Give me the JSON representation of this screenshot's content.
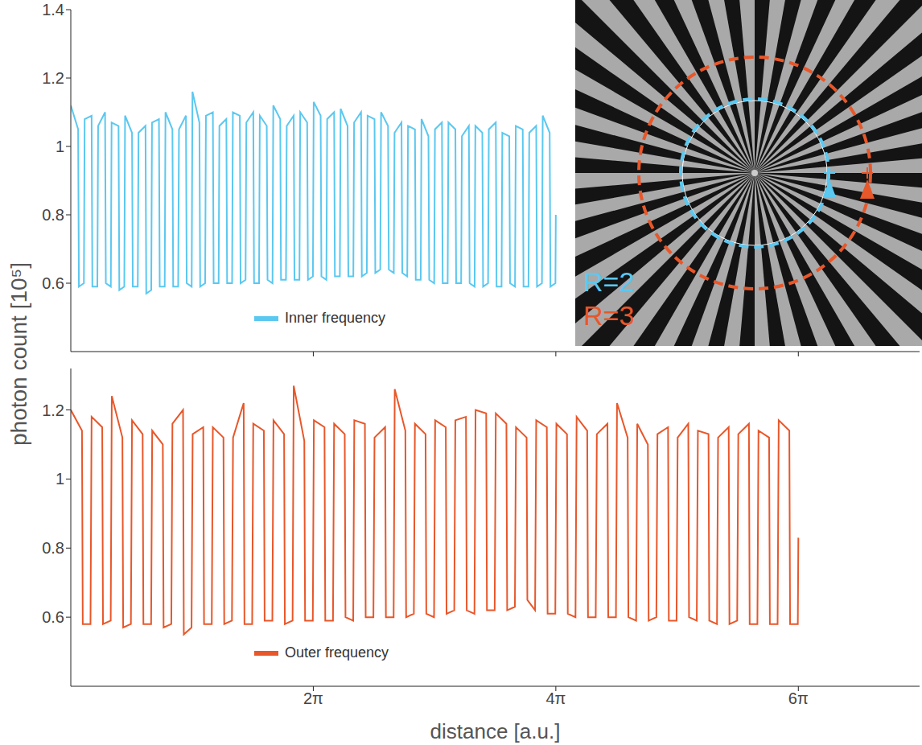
{
  "chart_data": [
    {
      "type": "line",
      "name": "Inner frequency",
      "color": "#5bc8f0",
      "legend": "lower left",
      "tick_labels": "y",
      "ylabel": "photon count [10⁵]",
      "xlim": [
        0,
        21.991
      ],
      "xticks": [
        {
          "value": 6.2832,
          "label": "2π"
        },
        {
          "value": 12.5664,
          "label": "4π"
        },
        {
          "value": 18.8496,
          "label": "6π"
        }
      ],
      "ylim": [
        0.4,
        1.4
      ],
      "yticks": [
        0.6,
        0.8,
        1,
        1.2,
        1.4
      ],
      "x": [
        0.0,
        0.19,
        0.21,
        0.339,
        0.359,
        0.539,
        0.559,
        0.688,
        0.708,
        0.888,
        0.908,
        1.037,
        1.057,
        1.237,
        1.257,
        1.386,
        1.406,
        1.586,
        1.606,
        1.735,
        1.755,
        1.935,
        1.955,
        2.084,
        2.104,
        2.284,
        2.304,
        2.433,
        2.453,
        2.633,
        2.653,
        2.782,
        2.803,
        2.983,
        3.003,
        3.132,
        3.152,
        3.332,
        3.352,
        3.481,
        3.501,
        3.681,
        3.701,
        3.83,
        3.85,
        4.03,
        4.05,
        4.179,
        4.199,
        4.379,
        4.399,
        4.528,
        4.548,
        4.728,
        4.748,
        4.877,
        4.897,
        5.077,
        5.097,
        5.226,
        5.246,
        5.426,
        5.446,
        5.575,
        5.595,
        5.775,
        5.795,
        5.924,
        5.944,
        6.124,
        6.144,
        6.273,
        6.293,
        6.473,
        6.493,
        6.622,
        6.642,
        6.822,
        6.842,
        6.971,
        6.991,
        7.171,
        7.191,
        7.32,
        7.34,
        7.52,
        7.54,
        7.669,
        7.689,
        7.869,
        7.889,
        8.018,
        8.039,
        8.219,
        8.239,
        8.368,
        8.388,
        8.568,
        8.588,
        8.717,
        8.737,
        8.917,
        8.937,
        9.066,
        9.086,
        9.266,
        9.286,
        9.415,
        9.435,
        9.615,
        9.635,
        9.764,
        9.784,
        9.964,
        9.984,
        10.113,
        10.133,
        10.313,
        10.333,
        10.462,
        10.482,
        10.662,
        10.682,
        10.811,
        10.831,
        11.011,
        11.031,
        11.16,
        11.18,
        11.36,
        11.38,
        11.509,
        11.529,
        11.709,
        11.729,
        11.858,
        11.878,
        12.058,
        12.078,
        12.207,
        12.227,
        12.407,
        12.427,
        12.556,
        12.566
      ],
      "values": [
        1.12,
        1.05,
        0.59,
        0.6,
        1.08,
        1.09,
        0.59,
        0.59,
        1.06,
        1.1,
        0.6,
        0.59,
        1.07,
        1.06,
        0.58,
        0.59,
        1.09,
        1.04,
        0.59,
        0.59,
        1.04,
        1.06,
        0.57,
        0.58,
        1.07,
        1.08,
        0.59,
        0.59,
        1.1,
        1.05,
        0.59,
        0.59,
        1.05,
        1.09,
        0.6,
        0.59,
        1.16,
        1.07,
        0.59,
        0.6,
        1.09,
        1.1,
        0.6,
        0.6,
        1.06,
        1.08,
        0.6,
        0.6,
        1.1,
        1.09,
        0.6,
        0.61,
        1.07,
        1.1,
        0.6,
        0.6,
        1.09,
        1.06,
        0.61,
        0.6,
        1.12,
        1.08,
        0.61,
        0.61,
        1.06,
        1.09,
        0.61,
        0.61,
        1.1,
        1.07,
        0.61,
        0.62,
        1.13,
        1.09,
        0.62,
        0.61,
        1.08,
        1.1,
        0.62,
        0.62,
        1.11,
        1.06,
        0.62,
        0.62,
        1.07,
        1.1,
        0.62,
        0.63,
        1.09,
        1.08,
        0.63,
        0.64,
        1.1,
        1.06,
        0.64,
        0.63,
        1.04,
        1.07,
        0.63,
        0.62,
        1.06,
        1.05,
        0.61,
        0.61,
        1.08,
        1.03,
        0.61,
        0.6,
        1.05,
        1.07,
        0.6,
        0.6,
        1.07,
        1.05,
        0.6,
        0.6,
        1.03,
        1.06,
        0.6,
        0.59,
        1.06,
        1.04,
        0.59,
        0.6,
        1.05,
        1.07,
        0.59,
        0.59,
        1.04,
        1.03,
        0.6,
        0.59,
        1.06,
        1.05,
        0.59,
        0.59,
        1.04,
        1.06,
        0.59,
        0.6,
        1.09,
        1.04,
        0.59,
        0.6,
        0.8
      ]
    },
    {
      "type": "line",
      "name": "Outer frequency",
      "color": "#e8572a",
      "legend": "lower left",
      "xlabel": "distance [a.u.]",
      "xlim": [
        0,
        21.991
      ],
      "xticks": [
        {
          "value": 6.2832,
          "label": "2π"
        },
        {
          "value": 12.5664,
          "label": "4π"
        },
        {
          "value": 18.8496,
          "label": "6π"
        }
      ],
      "ylim": [
        0.4,
        1.32
      ],
      "yticks": [
        0.6,
        0.8,
        1,
        1.2
      ],
      "x": [
        0.0,
        0.29,
        0.31,
        0.51,
        0.539,
        0.814,
        0.834,
        1.034,
        1.062,
        1.337,
        1.357,
        1.557,
        1.586,
        1.861,
        1.881,
        2.081,
        2.109,
        2.384,
        2.404,
        2.604,
        2.633,
        2.908,
        2.928,
        3.128,
        3.157,
        3.432,
        3.452,
        3.652,
        3.68,
        3.955,
        3.975,
        4.175,
        4.204,
        4.479,
        4.499,
        4.699,
        4.727,
        5.002,
        5.022,
        5.222,
        5.251,
        5.526,
        5.546,
        5.746,
        5.775,
        6.05,
        6.07,
        6.27,
        6.298,
        6.573,
        6.593,
        6.793,
        6.822,
        7.097,
        7.117,
        7.317,
        7.345,
        7.62,
        7.64,
        7.84,
        7.869,
        8.144,
        8.164,
        8.364,
        8.393,
        8.668,
        8.688,
        8.888,
        8.916,
        9.191,
        9.211,
        9.411,
        9.44,
        9.715,
        9.735,
        9.935,
        9.963,
        10.238,
        10.258,
        10.458,
        10.487,
        10.762,
        10.782,
        10.982,
        11.011,
        11.286,
        11.306,
        11.506,
        11.534,
        11.809,
        11.829,
        12.029,
        12.058,
        12.333,
        12.353,
        12.553,
        12.581,
        12.856,
        12.876,
        13.076,
        13.105,
        13.38,
        13.4,
        13.6,
        13.629,
        13.904,
        13.924,
        14.124,
        14.152,
        14.427,
        14.447,
        14.647,
        14.676,
        14.951,
        14.971,
        15.171,
        15.199,
        15.474,
        15.494,
        15.694,
        15.723,
        15.998,
        16.018,
        16.218,
        16.247,
        16.522,
        16.542,
        16.742,
        16.77,
        17.045,
        17.065,
        17.265,
        17.294,
        17.569,
        17.589,
        17.789,
        17.817,
        18.092,
        18.112,
        18.312,
        18.341,
        18.616,
        18.636,
        18.836,
        18.85
      ],
      "values": [
        1.2,
        1.14,
        0.58,
        0.58,
        1.18,
        1.15,
        0.58,
        0.59,
        1.24,
        1.12,
        0.57,
        0.58,
        1.17,
        1.13,
        0.58,
        0.58,
        1.14,
        1.1,
        0.57,
        0.58,
        1.16,
        1.2,
        0.55,
        0.57,
        1.13,
        1.15,
        0.58,
        0.58,
        1.15,
        1.12,
        0.58,
        0.59,
        1.12,
        1.22,
        0.58,
        0.58,
        1.16,
        1.14,
        0.59,
        0.59,
        1.17,
        1.13,
        0.58,
        0.59,
        1.27,
        1.11,
        0.59,
        0.59,
        1.17,
        1.15,
        0.59,
        0.59,
        1.16,
        1.13,
        0.6,
        0.59,
        1.17,
        1.16,
        0.6,
        0.6,
        1.12,
        1.15,
        0.6,
        0.6,
        1.26,
        1.14,
        0.6,
        0.61,
        1.16,
        1.13,
        0.61,
        0.6,
        1.17,
        1.15,
        0.61,
        0.62,
        1.17,
        1.18,
        0.62,
        0.61,
        1.2,
        1.19,
        0.62,
        0.62,
        1.19,
        1.16,
        0.62,
        0.63,
        1.15,
        1.12,
        0.65,
        0.62,
        1.17,
        1.15,
        0.61,
        0.61,
        1.16,
        1.13,
        0.61,
        0.6,
        1.18,
        1.14,
        0.6,
        0.6,
        1.13,
        1.16,
        0.6,
        0.6,
        1.22,
        1.12,
        0.6,
        0.59,
        1.16,
        1.1,
        0.59,
        0.6,
        1.13,
        1.15,
        0.59,
        0.59,
        1.12,
        1.16,
        0.6,
        0.59,
        1.14,
        1.13,
        0.59,
        0.58,
        1.12,
        1.15,
        0.58,
        0.59,
        1.13,
        1.16,
        0.58,
        0.58,
        1.14,
        1.12,
        0.58,
        0.58,
        1.17,
        1.14,
        0.58,
        0.58,
        0.83
      ]
    }
  ],
  "inset": {
    "labels": [
      {
        "text": "R=2",
        "color": "#5bc8f0"
      },
      {
        "text": "R=3",
        "color": "#e8572a"
      }
    ]
  }
}
